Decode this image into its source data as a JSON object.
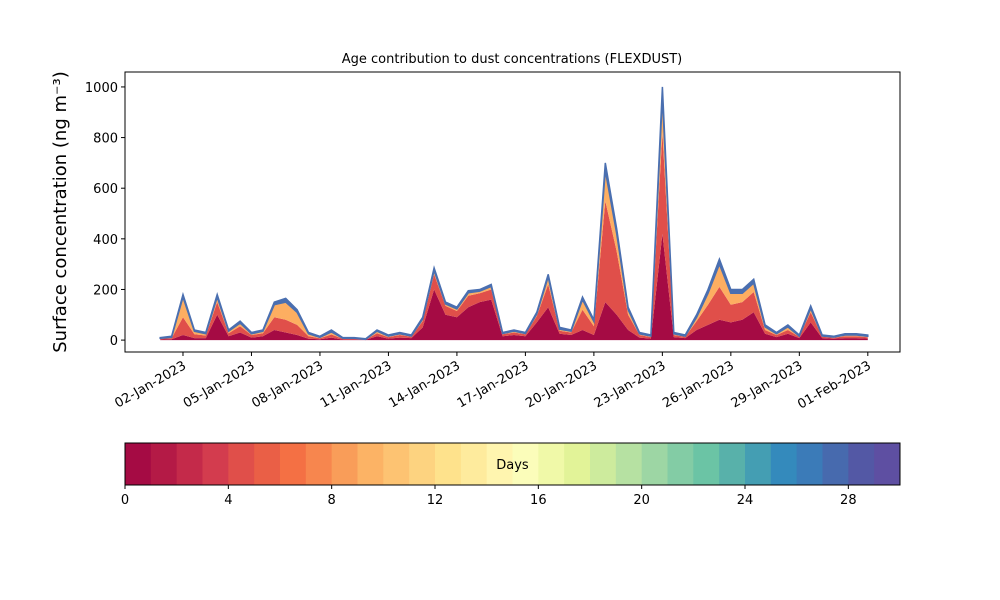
{
  "chart_data": {
    "type": "stacked-area",
    "title": "Age contribution to dust concentrations (FLEXDUST)",
    "y_label": "Surface concentration (ng m⁻³)",
    "x": [
      1,
      1.5,
      2,
      2.5,
      3,
      3.5,
      4,
      4.5,
      5,
      5.5,
      6,
      6.5,
      7,
      7.5,
      8,
      8.5,
      9,
      9.5,
      10,
      10.5,
      11,
      11.5,
      12,
      12.5,
      13,
      13.5,
      14,
      14.5,
      15,
      15.5,
      16,
      16.5,
      17,
      17.5,
      18,
      18.5,
      19,
      19.5,
      20,
      20.5,
      21,
      21.5,
      22,
      22.5,
      23,
      23.5,
      24,
      24.5,
      25,
      25.5,
      26,
      26.5,
      27,
      27.5,
      28,
      28.5,
      29,
      29.5,
      30,
      30.5,
      31,
      31.5,
      32
    ],
    "series": [
      {
        "color": "#a50b44",
        "values": [
          2,
          3,
          20,
          8,
          8,
          100,
          15,
          30,
          10,
          15,
          40,
          30,
          20,
          5,
          3,
          10,
          2,
          2,
          1,
          15,
          6,
          10,
          8,
          50,
          200,
          100,
          90,
          130,
          150,
          160,
          15,
          20,
          15,
          70,
          130,
          25,
          20,
          40,
          20,
          150,
          100,
          40,
          10,
          6,
          420,
          12,
          8,
          40,
          60,
          80,
          70,
          80,
          110,
          25,
          12,
          25,
          8,
          70,
          8,
          5,
          8,
          8,
          6
        ]
      },
      {
        "color": "#e04f4a",
        "values": [
          3,
          5,
          70,
          15,
          10,
          50,
          12,
          25,
          10,
          12,
          50,
          50,
          40,
          10,
          4,
          12,
          3,
          3,
          1,
          12,
          6,
          10,
          5,
          25,
          60,
          35,
          25,
          45,
          35,
          40,
          8,
          10,
          8,
          25,
          90,
          12,
          10,
          80,
          35,
          400,
          250,
          60,
          10,
          6,
          400,
          8,
          5,
          35,
          80,
          130,
          70,
          70,
          80,
          15,
          8,
          15,
          5,
          40,
          5,
          4,
          7,
          7,
          5
        ]
      },
      {
        "color": "#fdae61",
        "values": [
          2,
          3,
          80,
          12,
          7,
          20,
          8,
          12,
          5,
          8,
          50,
          70,
          50,
          10,
          4,
          10,
          2,
          2,
          1,
          8,
          4,
          5,
          3,
          8,
          15,
          8,
          8,
          12,
          8,
          12,
          3,
          5,
          3,
          8,
          30,
          6,
          5,
          40,
          18,
          120,
          70,
          20,
          5,
          4,
          140,
          5,
          3,
          15,
          45,
          90,
          45,
          35,
          35,
          12,
          5,
          12,
          3,
          15,
          3,
          3,
          5,
          5,
          4
        ]
      },
      {
        "color": "#4a6fb0",
        "values": [
          3,
          4,
          10,
          5,
          5,
          10,
          5,
          8,
          5,
          5,
          10,
          15,
          10,
          5,
          4,
          8,
          3,
          3,
          2,
          5,
          4,
          5,
          4,
          7,
          10,
          7,
          7,
          8,
          7,
          8,
          4,
          5,
          4,
          7,
          10,
          7,
          5,
          10,
          7,
          30,
          20,
          10,
          5,
          4,
          40,
          5,
          4,
          10,
          15,
          20,
          15,
          15,
          15,
          8,
          5,
          8,
          4,
          10,
          4,
          3,
          5,
          5,
          5
        ]
      }
    ],
    "xlim": [
      -0.54,
      33.41
    ],
    "xticks": [
      {
        "value": 2,
        "label": "02-Jan-2023"
      },
      {
        "value": 5,
        "label": "05-Jan-2023"
      },
      {
        "value": 8,
        "label": "08-Jan-2023"
      },
      {
        "value": 11,
        "label": "11-Jan-2023"
      },
      {
        "value": 14,
        "label": "14-Jan-2023"
      },
      {
        "value": 17,
        "label": "17-Jan-2023"
      },
      {
        "value": 20,
        "label": "20-Jan-2023"
      },
      {
        "value": 23,
        "label": "23-Jan-2023"
      },
      {
        "value": 26,
        "label": "26-Jan-2023"
      },
      {
        "value": 29,
        "label": "29-Jan-2023"
      },
      {
        "value": 32,
        "label": "01-Feb-2023"
      }
    ],
    "ylim": [
      -47,
      1059
    ],
    "yticks": [
      0,
      200,
      400,
      600,
      800,
      1000
    ],
    "colorbar": {
      "label": "Days",
      "lim": [
        0,
        30
      ],
      "ticks": [
        0,
        4,
        8,
        12,
        16,
        20,
        24,
        28
      ],
      "colors": [
        "#a50b44",
        "#b41a46",
        "#c42a4a",
        "#d33c4e",
        "#e04f4a",
        "#ea5f46",
        "#f47044",
        "#f7864e",
        "#f99d59",
        "#fcb365",
        "#fdc372",
        "#fdd380",
        "#fee28c",
        "#feeb9d",
        "#fff5af",
        "#fbfdba",
        "#f0f9a8",
        "#e2f398",
        "#cdeb9d",
        "#b6e1a2",
        "#9dd6a4",
        "#83cca5",
        "#6bc4a5",
        "#58b1aa",
        "#449eb3",
        "#348abc",
        "#3b7bb8",
        "#476aae",
        "#5358a5",
        "#5e4fa2"
      ]
    }
  }
}
